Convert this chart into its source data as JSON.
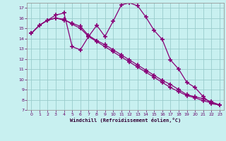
{
  "xlabel": "Windchill (Refroidissement éolien,°C)",
  "bg_color": "#c8f0f0",
  "line_color": "#880077",
  "grid_color": "#99cccc",
  "xlim": [
    -0.5,
    23.5
  ],
  "ylim": [
    7,
    17.5
  ],
  "yticks": [
    7,
    8,
    9,
    10,
    11,
    12,
    13,
    14,
    15,
    16,
    17
  ],
  "xticks": [
    0,
    1,
    2,
    3,
    4,
    5,
    6,
    7,
    8,
    9,
    10,
    11,
    12,
    13,
    14,
    15,
    16,
    17,
    18,
    19,
    20,
    21,
    22,
    23
  ],
  "line1_x": [
    0,
    1,
    2,
    3,
    4,
    5,
    6,
    7,
    8,
    9,
    10,
    11,
    12,
    13,
    14,
    15,
    16,
    17,
    18,
    19,
    20,
    21,
    22,
    23
  ],
  "line1_y": [
    14.5,
    15.3,
    15.8,
    16.3,
    16.5,
    13.2,
    12.9,
    14.2,
    15.3,
    14.2,
    15.7,
    17.3,
    17.5,
    17.2,
    16.1,
    14.8,
    13.9,
    11.9,
    11.0,
    9.7,
    9.2,
    8.3,
    7.6,
    7.5
  ],
  "line2_x": [
    0,
    1,
    2,
    3,
    4,
    5,
    6,
    7,
    8,
    9,
    10,
    11,
    12,
    13,
    14,
    15,
    16,
    17,
    18,
    19,
    20,
    21,
    22,
    23
  ],
  "line2_y": [
    14.5,
    15.3,
    15.8,
    16.0,
    15.8,
    15.5,
    15.2,
    14.3,
    13.8,
    13.4,
    12.9,
    12.4,
    11.9,
    11.4,
    10.9,
    10.4,
    9.9,
    9.5,
    9.0,
    8.5,
    8.3,
    8.1,
    7.8,
    7.5
  ],
  "line3_x": [
    0,
    1,
    2,
    3,
    4,
    5,
    6,
    7,
    8,
    9,
    10,
    11,
    12,
    13,
    14,
    15,
    16,
    17,
    18,
    19,
    20,
    21,
    22,
    23
  ],
  "line3_y": [
    14.5,
    15.3,
    15.8,
    16.0,
    15.9,
    15.4,
    15.0,
    14.2,
    13.7,
    13.2,
    12.7,
    12.2,
    11.7,
    11.2,
    10.7,
    10.2,
    9.7,
    9.2,
    8.8,
    8.4,
    8.2,
    7.9,
    7.7,
    7.5
  ]
}
